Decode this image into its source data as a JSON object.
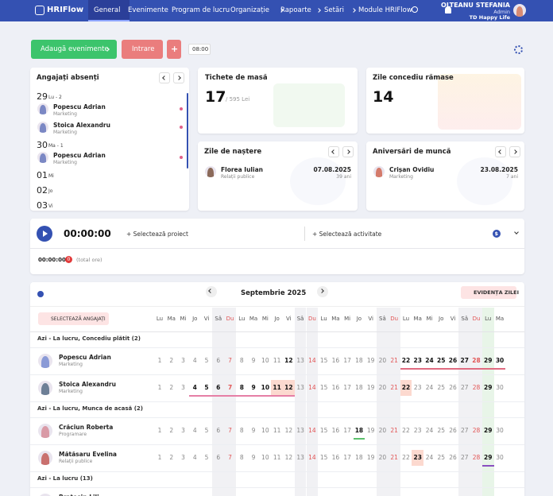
{
  "nav": {
    "logo": "HRIFlow",
    "items": [
      {
        "label": "General",
        "active": true
      },
      {
        "label": "Evenimente"
      },
      {
        "label": "Program de lucru"
      },
      {
        "label": "Organizație",
        "submenu": true
      },
      {
        "label": "Rapoarte",
        "submenu": true
      },
      {
        "label": "Setări",
        "submenu": true
      },
      {
        "label": "Module HRIFlow"
      }
    ],
    "user": {
      "name": "OLTEANU STEFANIA",
      "role": "Admin",
      "company": "TD Happy Life"
    }
  },
  "toolbar": {
    "add_events": "Adaugă evenimente",
    "entry": "Intrare",
    "plus": "+",
    "start_time": "08:00"
  },
  "absent": {
    "title": "Angajați absenți",
    "days": [
      {
        "day": "29",
        "label": "Lu - 2",
        "people": [
          {
            "name": "Popescu Adrian",
            "department": "Marketing"
          },
          {
            "name": "Stoica Alexandru",
            "department": "Marketing"
          }
        ]
      },
      {
        "day": "30",
        "label": "Ma - 1",
        "people": [
          {
            "name": "Popescu Adrian",
            "department": "Marketing"
          }
        ]
      },
      {
        "day": "01",
        "label": "Mi",
        "people": []
      },
      {
        "day": "02",
        "label": "Jo",
        "people": []
      },
      {
        "day": "03",
        "label": "Vi",
        "people": []
      }
    ]
  },
  "meal_tickets": {
    "title": "Tichete de masă",
    "count": "17",
    "total": "/ 595 Lei"
  },
  "leave": {
    "title": "Zile concediu rămase",
    "days": "14"
  },
  "birthdays": {
    "title": "Zile de naștere",
    "name": "Florea Iulian",
    "department": "Relații publice",
    "date": "07.08.2025",
    "age": "39 ani"
  },
  "anniversaries": {
    "title": "Aniversări de muncă",
    "name": "Crișan Ovidiu",
    "department": "Marketing",
    "date": "23.08.2025",
    "years": "7 ani"
  },
  "timer": {
    "time": "00:00:00",
    "project": "+ Selectează proiect",
    "activity": "+ Selectează activitate",
    "currency": "$",
    "total_time": "00:00:00",
    "count": "0",
    "total_label": "(total ore)"
  },
  "calendar": {
    "month": "Septembrie 2025",
    "day_view": "EVIDENȚA ZILEI",
    "select_employees": "SELECTEAZĂ ANGAJAȚI",
    "weekdays": [
      "Lu",
      "Ma",
      "Mi",
      "Jo",
      "Vi",
      "Sâ",
      "Du",
      "Lu",
      "Ma",
      "Mi",
      "Jo",
      "Vi",
      "Sâ",
      "Du",
      "Lu",
      "Ma",
      "Mi",
      "Jo",
      "Vi",
      "Sâ",
      "Du",
      "Lu",
      "Ma",
      "Mi",
      "Jo",
      "Vi",
      "Sâ",
      "Du",
      "Lu",
      "Ma"
    ],
    "days": [
      1,
      2,
      3,
      4,
      5,
      6,
      7,
      8,
      9,
      10,
      11,
      12,
      13,
      14,
      15,
      16,
      17,
      18,
      19,
      20,
      21,
      22,
      23,
      24,
      25,
      26,
      27,
      28,
      29,
      30
    ],
    "weekend_days": [
      6,
      7,
      13,
      14,
      20,
      21,
      27,
      28
    ],
    "sunday_days": [
      7,
      14,
      21,
      28
    ],
    "today": 29,
    "groups": [
      {
        "title": "Azi - La lucru, Concediu plătit (2)",
        "employees": [
          {
            "name": "Popescu Adrian",
            "department": "Marketing",
            "avatar_color": "#8a9ad6",
            "bold_days": [
              12,
              22,
              23,
              24,
              25,
              26,
              27,
              28,
              29,
              30
            ],
            "highlight_days": [],
            "underline_days": [
              22,
              23,
              24,
              25,
              26,
              27,
              28,
              29,
              30
            ],
            "underline_color": "#e06b80"
          },
          {
            "name": "Stoica Alexandru",
            "department": "Marketing",
            "avatar_color": "#6d7f96",
            "bold_days": [
              4,
              5,
              6,
              7,
              8,
              9,
              10,
              11,
              12,
              22,
              29
            ],
            "highlight_days": [
              11,
              12,
              22
            ],
            "underline_days": [
              4,
              5,
              6,
              7,
              8,
              9,
              10,
              11,
              12
            ],
            "underline_color": "#e67fa6"
          }
        ]
      },
      {
        "title": "Azi - La lucru, Munca de acasă (2)",
        "employees": [
          {
            "name": "Crăciun Roberta",
            "department": "Programare",
            "avatar_color": "#d99aa6",
            "bold_days": [
              18,
              29
            ],
            "highlight_days": [],
            "underline_days": [
              18
            ],
            "underline_color": "#5cc06c"
          },
          {
            "name": "Mătăsaru Evelina",
            "department": "Relații publice",
            "avatar_color": "#c9706e",
            "bold_days": [
              23,
              29
            ],
            "highlight_days": [
              23
            ],
            "underline_days": [
              29
            ],
            "underline_color": "#8a4fc0"
          }
        ]
      },
      {
        "title": "Azi - La lucru (13)",
        "employees": [
          {
            "name": "Bratosin Lili",
            "avatar_color": "#b08878",
            "bold_days": [],
            "highlight_days": [],
            "underline_days": [],
            "underline_color": "#cccccc"
          }
        ]
      }
    ]
  }
}
